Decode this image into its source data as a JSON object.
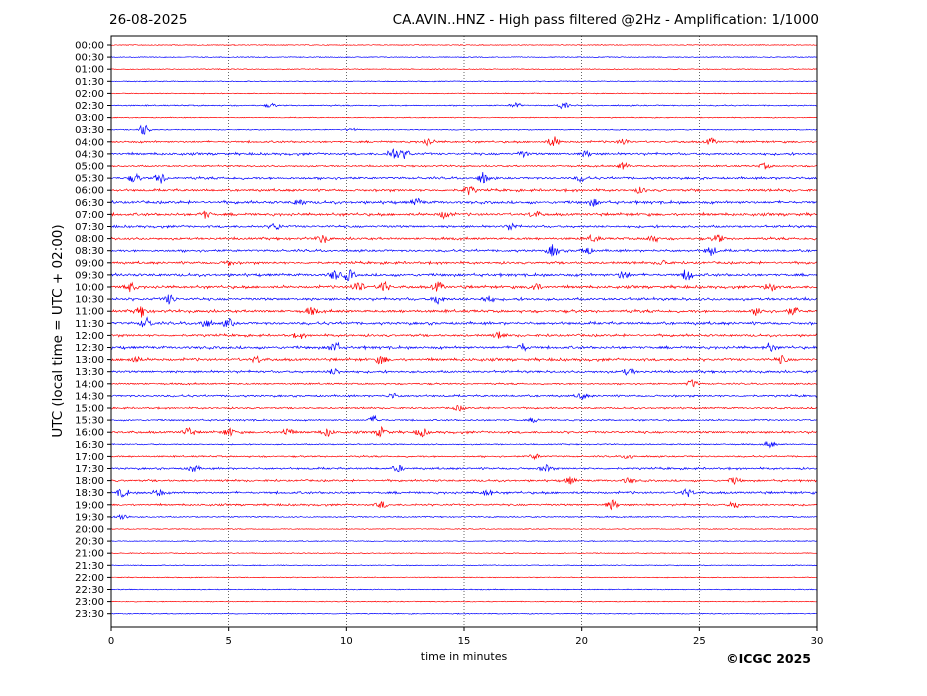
{
  "header": {
    "date": "26-08-2025",
    "title": "CA.AVIN..HNZ - High pass filtered @2Hz - Amplification: 1/1000"
  },
  "copyright": "©ICGC 2025",
  "chart_data": {
    "type": "line",
    "xlabel": "time in minutes",
    "ylabel": "UTC (local time = UTC + 02:00)",
    "xlim": [
      0,
      30
    ],
    "x_ticks": [
      0,
      5,
      10,
      15,
      20,
      25,
      30
    ],
    "grid": "vertical dotted lines every 5 minutes",
    "series_colors": [
      "#ff0000",
      "#0000ff"
    ],
    "color_pattern": "alternating every row; irregular daytime pairs",
    "rows": [
      {
        "label": "00:00",
        "color": "#ff0000",
        "level": 0.1,
        "bursts": []
      },
      {
        "label": "00:30",
        "color": "#0000ff",
        "level": 0.1,
        "bursts": []
      },
      {
        "label": "01:00",
        "color": "#ff0000",
        "level": 0.1,
        "bursts": []
      },
      {
        "label": "01:30",
        "color": "#0000ff",
        "level": 0.1,
        "bursts": []
      },
      {
        "label": "02:00",
        "color": "#ff0000",
        "level": 0.1,
        "bursts": []
      },
      {
        "label": "02:30",
        "color": "#0000ff",
        "level": 0.2,
        "bursts": [
          [
            6.8,
            0.3
          ],
          [
            17.2,
            0.4
          ],
          [
            19.2,
            0.5
          ]
        ]
      },
      {
        "label": "03:00",
        "color": "#ff0000",
        "level": 0.1,
        "bursts": []
      },
      {
        "label": "03:30",
        "color": "#0000ff",
        "level": 0.1,
        "bursts": [
          [
            1.4,
            0.9
          ],
          [
            10.2,
            0.3
          ]
        ]
      },
      {
        "label": "04:00",
        "color": "#ff0000",
        "level": 0.4,
        "bursts": [
          [
            13.5,
            0.6
          ],
          [
            18.8,
            0.8
          ],
          [
            21.8,
            0.5
          ],
          [
            25.5,
            0.5
          ]
        ]
      },
      {
        "label": "04:30",
        "color": "#0000ff",
        "level": 0.5,
        "bursts": [
          [
            12.0,
            0.9
          ],
          [
            12.5,
            0.6
          ],
          [
            17.5,
            0.4
          ],
          [
            20.2,
            0.4
          ]
        ]
      },
      {
        "label": "05:00",
        "color": "#ff0000",
        "level": 0.3,
        "bursts": [
          [
            21.8,
            0.5
          ],
          [
            27.8,
            0.4
          ]
        ]
      },
      {
        "label": "05:30",
        "color": "#0000ff",
        "level": 0.5,
        "bursts": [
          [
            1.0,
            0.6
          ],
          [
            2.1,
            0.8
          ],
          [
            15.8,
            0.8
          ],
          [
            20.0,
            0.5
          ]
        ]
      },
      {
        "label": "06:00",
        "color": "#ff0000",
        "level": 0.5,
        "bursts": [
          [
            15.2,
            0.7
          ],
          [
            22.5,
            0.4
          ]
        ]
      },
      {
        "label": "06:30",
        "color": "#0000ff",
        "level": 0.6,
        "bursts": [
          [
            8.0,
            0.5
          ],
          [
            13.0,
            0.5
          ],
          [
            20.5,
            0.5
          ]
        ]
      },
      {
        "label": "07:00",
        "color": "#ff0000",
        "level": 0.6,
        "bursts": [
          [
            4.0,
            0.5
          ],
          [
            14.2,
            0.6
          ],
          [
            18.0,
            0.5
          ]
        ]
      },
      {
        "label": "07:30",
        "color": "#0000ff",
        "level": 0.5,
        "bursts": [
          [
            7.0,
            0.5
          ],
          [
            17.0,
            0.5
          ]
        ]
      },
      {
        "label": "08:00",
        "color": "#ff0000",
        "level": 0.5,
        "bursts": [
          [
            9.0,
            0.6
          ],
          [
            20.5,
            0.5
          ],
          [
            23.0,
            0.5
          ],
          [
            25.8,
            0.6
          ]
        ]
      },
      {
        "label": "08:30",
        "color": "#0000ff",
        "level": 0.5,
        "bursts": [
          [
            18.8,
            0.9
          ],
          [
            20.2,
            0.6
          ],
          [
            25.5,
            0.7
          ]
        ]
      },
      {
        "label": "09:00",
        "color": "#ff0000",
        "level": 0.5,
        "bursts": [
          [
            5.0,
            0.4
          ],
          [
            23.5,
            0.4
          ]
        ]
      },
      {
        "label": "09:30",
        "color": "#0000ff",
        "level": 0.6,
        "bursts": [
          [
            9.5,
            0.7
          ],
          [
            10.1,
            0.8
          ],
          [
            21.8,
            0.7
          ],
          [
            24.5,
            0.9
          ]
        ]
      },
      {
        "label": "10:00",
        "color": "#ff0000",
        "level": 0.6,
        "bursts": [
          [
            0.8,
            0.7
          ],
          [
            10.5,
            0.9
          ],
          [
            11.6,
            0.8
          ],
          [
            13.9,
            0.7
          ],
          [
            18.0,
            0.6
          ],
          [
            28.0,
            0.7
          ]
        ]
      },
      {
        "label": "10:30",
        "color": "#0000ff",
        "level": 0.6,
        "bursts": [
          [
            2.5,
            0.7
          ],
          [
            13.9,
            0.7
          ],
          [
            16.0,
            0.5
          ]
        ]
      },
      {
        "label": "11:00",
        "color": "#ff0000",
        "level": 0.6,
        "bursts": [
          [
            1.3,
            0.8
          ],
          [
            8.5,
            0.5
          ],
          [
            27.5,
            0.6
          ],
          [
            29.0,
            0.6
          ]
        ]
      },
      {
        "label": "11:30",
        "color": "#0000ff",
        "level": 0.6,
        "bursts": [
          [
            1.5,
            0.8
          ],
          [
            4.0,
            0.7
          ],
          [
            5.0,
            0.6
          ]
        ]
      },
      {
        "label": "12:00",
        "color": "#ff0000",
        "level": 0.5,
        "bursts": [
          [
            8.0,
            0.4
          ],
          [
            16.5,
            0.5
          ]
        ]
      },
      {
        "label": "12:30",
        "color": "#0000ff",
        "level": 0.6,
        "bursts": [
          [
            9.5,
            0.8
          ],
          [
            17.5,
            0.5
          ],
          [
            28.0,
            0.6
          ]
        ]
      },
      {
        "label": "13:00",
        "color": "#ff0000",
        "level": 0.6,
        "bursts": [
          [
            1.0,
            0.5
          ],
          [
            6.2,
            0.5
          ],
          [
            11.5,
            0.6
          ],
          [
            28.5,
            0.5
          ]
        ]
      },
      {
        "label": "13:30",
        "color": "#0000ff",
        "level": 0.5,
        "bursts": [
          [
            9.5,
            0.5
          ],
          [
            22.0,
            0.5
          ]
        ]
      },
      {
        "label": "14:00",
        "color": "#ff0000",
        "level": 0.3,
        "bursts": [
          [
            24.7,
            0.6
          ]
        ]
      },
      {
        "label": "14:30",
        "color": "#0000ff",
        "level": 0.4,
        "bursts": [
          [
            12.0,
            0.4
          ],
          [
            20.0,
            0.4
          ]
        ]
      },
      {
        "label": "15:00",
        "color": "#ff0000",
        "level": 0.3,
        "bursts": [
          [
            14.8,
            0.4
          ]
        ]
      },
      {
        "label": "15:30",
        "color": "#0000ff",
        "level": 0.3,
        "bursts": [
          [
            11.2,
            0.6
          ],
          [
            18.0,
            0.3
          ]
        ]
      },
      {
        "label": "16:00",
        "color": "#ff0000",
        "level": 0.5,
        "bursts": [
          [
            3.3,
            0.7
          ],
          [
            5.0,
            0.6
          ],
          [
            7.5,
            0.6
          ],
          [
            9.2,
            0.6
          ],
          [
            11.5,
            0.7
          ],
          [
            13.2,
            0.6
          ]
        ]
      },
      {
        "label": "16:30",
        "color": "#0000ff",
        "level": 0.2,
        "bursts": [
          [
            28.0,
            0.5
          ]
        ]
      },
      {
        "label": "17:00",
        "color": "#ff0000",
        "level": 0.3,
        "bursts": [
          [
            18.0,
            0.4
          ],
          [
            22.0,
            0.4
          ]
        ]
      },
      {
        "label": "17:30",
        "color": "#0000ff",
        "level": 0.4,
        "bursts": [
          [
            3.5,
            0.5
          ],
          [
            12.2,
            0.5
          ],
          [
            18.5,
            0.5
          ]
        ]
      },
      {
        "label": "18:00",
        "color": "#ff0000",
        "level": 0.4,
        "bursts": [
          [
            19.5,
            0.5
          ],
          [
            22.0,
            0.4
          ],
          [
            26.5,
            0.5
          ]
        ]
      },
      {
        "label": "18:30",
        "color": "#0000ff",
        "level": 0.5,
        "bursts": [
          [
            0.5,
            0.6
          ],
          [
            2.0,
            0.5
          ],
          [
            16.0,
            0.5
          ],
          [
            24.5,
            0.6
          ]
        ]
      },
      {
        "label": "19:00",
        "color": "#ff0000",
        "level": 0.4,
        "bursts": [
          [
            11.5,
            0.5
          ],
          [
            21.3,
            0.7
          ],
          [
            26.5,
            0.5
          ]
        ]
      },
      {
        "label": "19:30",
        "color": "#0000ff",
        "level": 0.2,
        "bursts": [
          [
            0.5,
            0.5
          ]
        ]
      },
      {
        "label": "20:00",
        "color": "#ff0000",
        "level": 0.1,
        "bursts": []
      },
      {
        "label": "20:30",
        "color": "#0000ff",
        "level": 0.1,
        "bursts": []
      },
      {
        "label": "21:00",
        "color": "#ff0000",
        "level": 0.1,
        "bursts": []
      },
      {
        "label": "21:30",
        "color": "#0000ff",
        "level": 0.1,
        "bursts": []
      },
      {
        "label": "22:00",
        "color": "#ff0000",
        "level": 0.1,
        "bursts": []
      },
      {
        "label": "22:30",
        "color": "#0000ff",
        "level": 0.1,
        "bursts": []
      },
      {
        "label": "23:00",
        "color": "#ff0000",
        "level": 0.1,
        "bursts": []
      },
      {
        "label": "23:30",
        "color": "#0000ff",
        "level": 0.1,
        "bursts": []
      }
    ]
  }
}
